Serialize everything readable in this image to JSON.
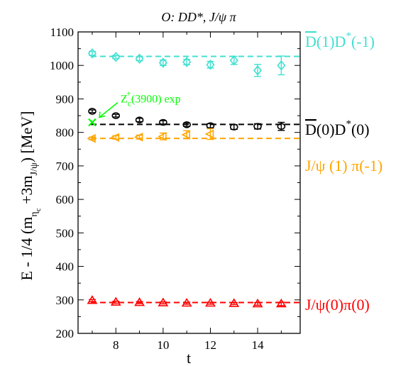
{
  "chart_data": {
    "type": "scatter",
    "title": "O: DD*, J/ψ π",
    "xlabel": "t",
    "ylabel": "E - 1/4 (mηc +3mJ/ψ)  [MeV]",
    "xlim": [
      6.4,
      15.8
    ],
    "ylim": [
      200,
      1100
    ],
    "xticks": [
      8,
      10,
      12,
      14
    ],
    "yticks": [
      200,
      300,
      400,
      500,
      600,
      700,
      800,
      900,
      1000,
      1100
    ],
    "grid": false,
    "series": [
      {
        "name": "D̅(1)D*(-1)",
        "color": "#40e0d0",
        "marker": "diamond",
        "reference_line": 1027,
        "points": [
          {
            "x": 7,
            "y": 1036,
            "err": 6
          },
          {
            "x": 8,
            "y": 1025,
            "err": 5
          },
          {
            "x": 9,
            "y": 1020,
            "err": 6
          },
          {
            "x": 10,
            "y": 1008,
            "err": 8
          },
          {
            "x": 11,
            "y": 1010,
            "err": 8
          },
          {
            "x": 12,
            "y": 1002,
            "err": 10
          },
          {
            "x": 13,
            "y": 1015,
            "err": 12
          },
          {
            "x": 14,
            "y": 985,
            "err": 18
          },
          {
            "x": 15,
            "y": 1000,
            "err": 28
          }
        ]
      },
      {
        "name": "D̅(0)D*(0)",
        "color": "#000000",
        "marker": "circle",
        "reference_line": 824,
        "points": [
          {
            "x": 7,
            "y": 863,
            "err": 4
          },
          {
            "x": 8,
            "y": 850,
            "err": 4
          },
          {
            "x": 9,
            "y": 837,
            "err": 5
          },
          {
            "x": 10,
            "y": 830,
            "err": 5
          },
          {
            "x": 11,
            "y": 823,
            "err": 5
          },
          {
            "x": 12,
            "y": 820,
            "err": 6
          },
          {
            "x": 13,
            "y": 816,
            "err": 7
          },
          {
            "x": 14,
            "y": 818,
            "err": 8
          },
          {
            "x": 15,
            "y": 818,
            "err": 12
          }
        ]
      },
      {
        "name": "J/ψ (1) π(-1)",
        "color": "#ffa500",
        "marker": "triangle-left",
        "reference_line": 782,
        "points": [
          {
            "x": 7,
            "y": 782,
            "err": 4
          },
          {
            "x": 8,
            "y": 785,
            "err": 5
          },
          {
            "x": 9,
            "y": 786,
            "err": 6
          },
          {
            "x": 10,
            "y": 788,
            "err": 10
          },
          {
            "x": 11,
            "y": 793,
            "err": 12
          },
          {
            "x": 12,
            "y": 795,
            "err": 16
          }
        ]
      },
      {
        "name": "J/ψ(0)π(0)",
        "color": "#ff0000",
        "marker": "triangle-up",
        "reference_line": 292,
        "points": [
          {
            "x": 7,
            "y": 298,
            "err": 3
          },
          {
            "x": 8,
            "y": 293,
            "err": 3
          },
          {
            "x": 9,
            "y": 292,
            "err": 3
          },
          {
            "x": 10,
            "y": 291,
            "err": 3
          },
          {
            "x": 11,
            "y": 290,
            "err": 3
          },
          {
            "x": 12,
            "y": 290,
            "err": 3
          },
          {
            "x": 13,
            "y": 289,
            "err": 3
          },
          {
            "x": 14,
            "y": 288,
            "err": 4
          },
          {
            "x": 15,
            "y": 288,
            "err": 5
          }
        ]
      }
    ],
    "annotation": {
      "text": "Zc+(3900)  exp",
      "color": "#00ff00",
      "marker": "x",
      "x": 7,
      "y": 830
    }
  }
}
